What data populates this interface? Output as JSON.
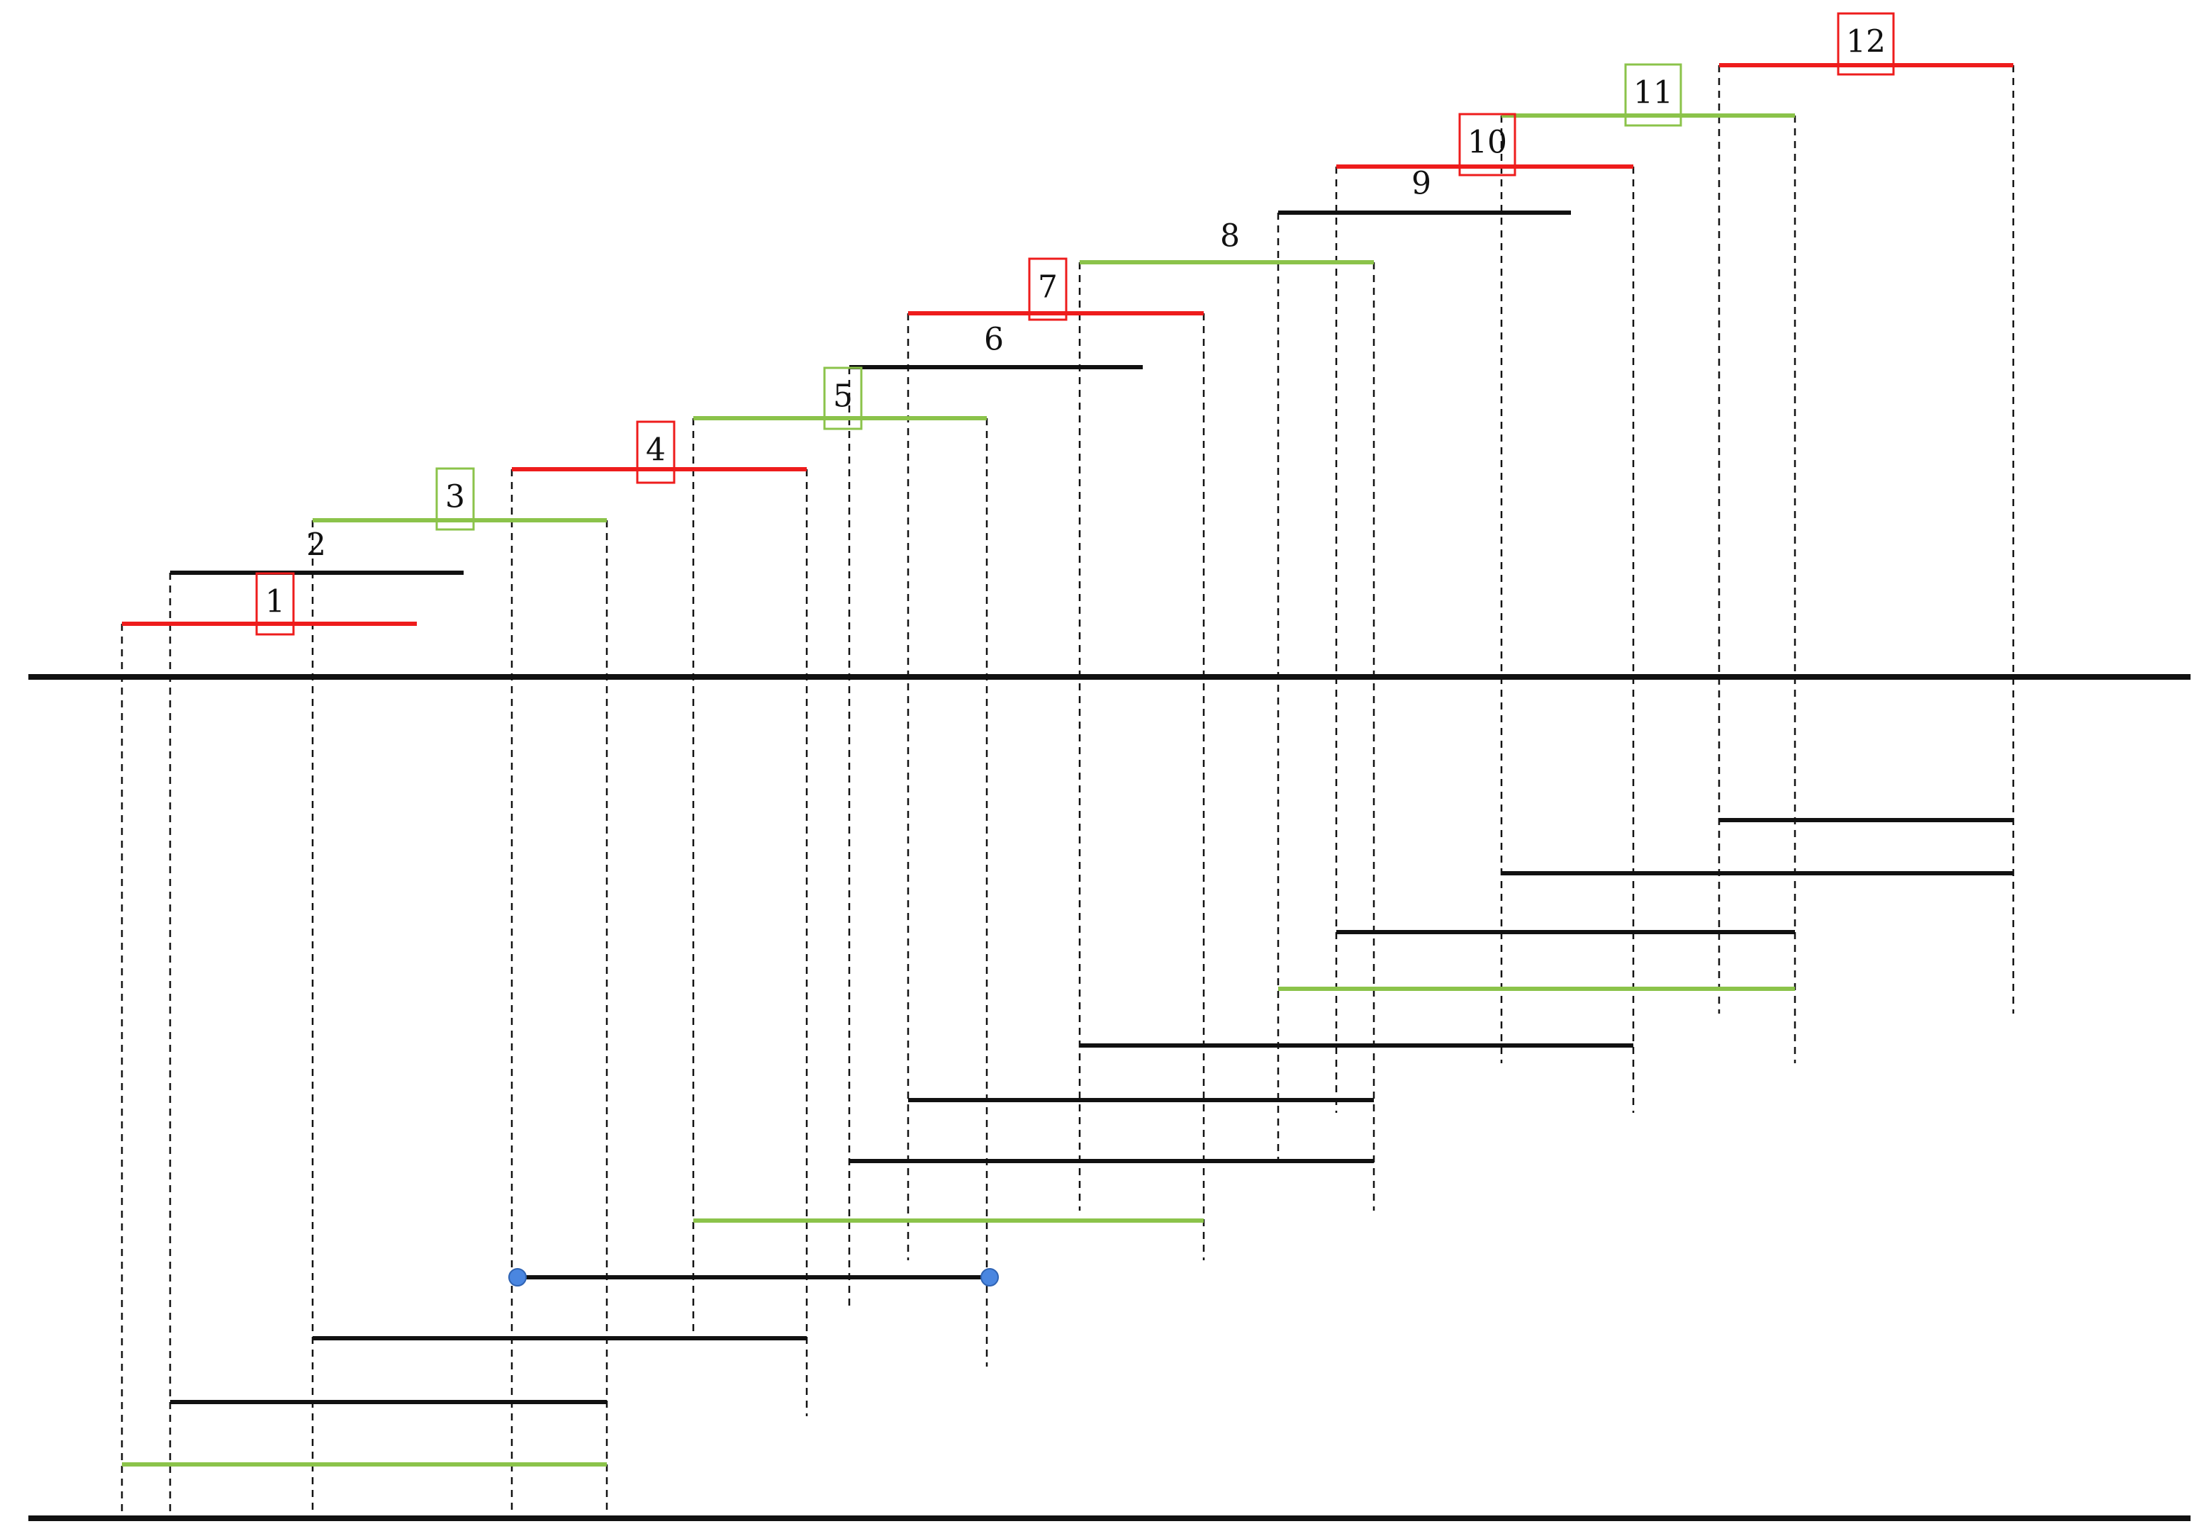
{
  "diagram": {
    "type": "interval-layout",
    "colors": {
      "red": "#ee1c1c",
      "green": "#8bc34a",
      "black": "#111111",
      "endpoint": "#4a86e0"
    },
    "upper_segments": [
      {
        "label": "1",
        "color": "red",
        "boxed": true
      },
      {
        "label": "2",
        "color": "black",
        "boxed": false
      },
      {
        "label": "3",
        "color": "green",
        "boxed": true
      },
      {
        "label": "4",
        "color": "red",
        "boxed": true
      },
      {
        "label": "5",
        "color": "green",
        "boxed": true
      },
      {
        "label": "6",
        "color": "black",
        "boxed": false
      },
      {
        "label": "7",
        "color": "red",
        "boxed": true
      },
      {
        "label": "8",
        "color": "green",
        "boxed": false
      },
      {
        "label": "9",
        "color": "black",
        "boxed": false
      },
      {
        "label": "10",
        "color": "red",
        "boxed": true
      },
      {
        "label": "11",
        "color": "green",
        "boxed": true
      },
      {
        "label": "12",
        "color": "red",
        "boxed": true
      }
    ],
    "lower_segments": [
      {
        "color": "green",
        "has_endpoints": false
      },
      {
        "color": "black",
        "has_endpoints": false
      },
      {
        "color": "black",
        "has_endpoints": false
      },
      {
        "color": "black",
        "has_endpoints": true
      },
      {
        "color": "green",
        "has_endpoints": false
      },
      {
        "color": "black",
        "has_endpoints": false
      },
      {
        "color": "black",
        "has_endpoints": false
      },
      {
        "color": "black",
        "has_endpoints": false
      },
      {
        "color": "green",
        "has_endpoints": false
      },
      {
        "color": "black",
        "has_endpoints": false
      },
      {
        "color": "black",
        "has_endpoints": false
      },
      {
        "color": "black",
        "has_endpoints": false
      }
    ]
  }
}
